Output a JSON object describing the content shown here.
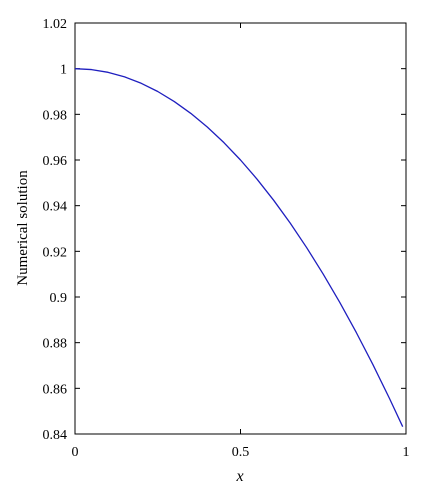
{
  "chart_data": {
    "type": "line",
    "title": "",
    "xlabel": "x",
    "ylabel": "Numerical solution",
    "xlim": [
      0,
      1
    ],
    "ylim": [
      0.84,
      1.02
    ],
    "xticks": [
      0,
      0.5,
      1
    ],
    "xtick_labels": [
      "0",
      "0.5",
      "1"
    ],
    "yticks": [
      0.84,
      0.86,
      0.88,
      0.9,
      0.92,
      0.94,
      0.96,
      0.98,
      1,
      1.02
    ],
    "ytick_labels": [
      "0.84",
      "0.86",
      "0.88",
      "0.9",
      "0.92",
      "0.94",
      "0.96",
      "0.98",
      "1",
      "1.02"
    ],
    "grid": false,
    "series": [
      {
        "color": "#1f1fbf",
        "x": [
          0,
          0.05,
          0.1,
          0.15,
          0.2,
          0.25,
          0.3,
          0.35,
          0.4,
          0.45,
          0.5,
          0.55,
          0.6,
          0.65,
          0.7,
          0.75,
          0.8,
          0.85,
          0.9,
          0.95,
          0.99
        ],
        "y": [
          1.0,
          0.9996,
          0.9984,
          0.9964,
          0.9936,
          0.99,
          0.9856,
          0.9804,
          0.9744,
          0.9676,
          0.96,
          0.9516,
          0.9424,
          0.9324,
          0.9216,
          0.91,
          0.8976,
          0.8844,
          0.8704,
          0.8556,
          0.8432
        ]
      }
    ]
  }
}
